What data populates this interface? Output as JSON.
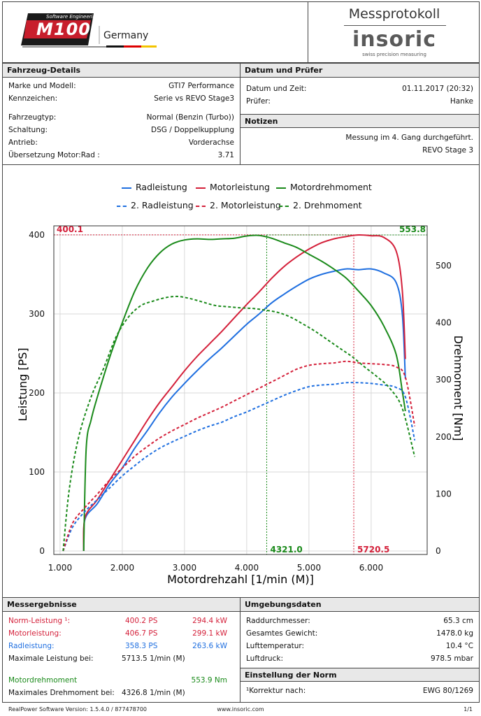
{
  "header": {
    "logo_small": "Software Engineering",
    "logo_main": "M100",
    "logo_country": "Germany",
    "protocol_title": "Messprotokoll",
    "brand": "insoric",
    "brand_sub": "swiss precision measuring"
  },
  "vehicle": {
    "heading": "Fahrzeug-Details",
    "rows": [
      {
        "label": "Marke und Modell:",
        "value": "GTI7 Performance"
      },
      {
        "label": "Kennzeichen:",
        "value": "Serie vs REVO Stage3"
      },
      {
        "label": "Fahrzeugtyp:",
        "value": "Normal (Benzin (Turbo))"
      },
      {
        "label": "Schaltung:",
        "value": "DSG / Doppelkupplung"
      },
      {
        "label": "Antrieb:",
        "value": "Vorderachse"
      },
      {
        "label": "Übersetzung Motor:Rad :",
        "value": "3.71"
      }
    ]
  },
  "date": {
    "heading": "Datum und Prüfer",
    "rows": [
      {
        "label": "Datum und Zeit:",
        "value": "01.11.2017 (20:32)"
      },
      {
        "label": "Prüfer:",
        "value": "Hanke"
      }
    ]
  },
  "notes": {
    "heading": "Notizen",
    "line1": "Messung im 4. Gang durchgeführt.",
    "line2": "REVO Stage 3"
  },
  "colors": {
    "blue": "#1f6fe0",
    "red": "#d4203a",
    "green": "#1a8a1a"
  },
  "chart_data": {
    "type": "line",
    "xlabel": "Motordrehzahl [1/min (M)]",
    "ylabel": "Leistung [PS]",
    "y2label": "Drehmoment [Nm]",
    "xlim": [
      900,
      6900
    ],
    "ylim": [
      0,
      400
    ],
    "y2lim": [
      0,
      553.8
    ],
    "xticks": [
      "1.000",
      "2.000",
      "3.000",
      "4.000",
      "5.000",
      "6.000"
    ],
    "xtick_values": [
      1000,
      2000,
      3000,
      4000,
      5000,
      6000
    ],
    "yticks": [
      "0",
      "100",
      "200",
      "300",
      "400"
    ],
    "ytick_values": [
      0,
      100,
      200,
      300,
      400
    ],
    "y2ticks": [
      "0",
      "100",
      "200",
      "300",
      "400",
      "500"
    ],
    "y2tick_values": [
      0,
      100,
      200,
      300,
      400,
      500
    ],
    "markers": {
      "max_power_value": "400.1",
      "max_power_label_value": 400.1,
      "max_torque_value": "553.8",
      "max_torque_label_value": 553.8,
      "torque_rpm": "4321.0",
      "torque_rpm_value": 4321,
      "power_rpm": "5720.5",
      "power_rpm_value": 5720.5
    },
    "series": [
      {
        "name": "Radleistung",
        "color": "#1f6fe0",
        "dashed": false,
        "axis": "left",
        "x": [
          1380,
          1400,
          1600,
          1800,
          2000,
          2200,
          2400,
          2600,
          2800,
          3000,
          3200,
          3400,
          3600,
          3800,
          4000,
          4200,
          4400,
          4600,
          4800,
          5000,
          5200,
          5400,
          5600,
          5800,
          6000,
          6200,
          6400,
          6500,
          6550
        ],
        "y": [
          0,
          40,
          60,
          85,
          105,
          130,
          152,
          175,
          195,
          212,
          228,
          243,
          257,
          272,
          287,
          300,
          314,
          325,
          335,
          344,
          350,
          354,
          357,
          356,
          357,
          352,
          340,
          300,
          218
        ]
      },
      {
        "name": "Motorleistung",
        "color": "#d4203a",
        "dashed": false,
        "axis": "left",
        "x": [
          1380,
          1400,
          1600,
          1800,
          2000,
          2200,
          2400,
          2600,
          2800,
          3000,
          3200,
          3400,
          3600,
          3800,
          4000,
          4200,
          4400,
          4600,
          4800,
          5000,
          5200,
          5400,
          5600,
          5800,
          6000,
          6200,
          6400,
          6500,
          6550
        ],
        "y": [
          0,
          42,
          65,
          90,
          115,
          140,
          165,
          188,
          208,
          228,
          246,
          262,
          278,
          295,
          312,
          328,
          345,
          360,
          372,
          382,
          390,
          395,
          398,
          400,
          399,
          397,
          380,
          330,
          243
        ]
      },
      {
        "name": "Motordrehmoment",
        "color": "#1a8a1a",
        "dashed": false,
        "axis": "right",
        "x": [
          1380,
          1420,
          1500,
          1600,
          1800,
          2000,
          2200,
          2400,
          2600,
          2800,
          3000,
          3200,
          3400,
          3600,
          3800,
          4000,
          4200,
          4400,
          4600,
          4800,
          5000,
          5200,
          5400,
          5600,
          5800,
          6000,
          6200,
          6400,
          6500,
          6550
        ],
        "y": [
          0,
          180,
          230,
          270,
          340,
          400,
          455,
          495,
          522,
          538,
          545,
          547,
          546,
          547,
          548,
          552,
          553,
          548,
          540,
          532,
          520,
          508,
          494,
          478,
          455,
          430,
          395,
          345,
          280,
          245
        ]
      },
      {
        "name": "2. Radleistung",
        "color": "#1f6fe0",
        "dashed": true,
        "axis": "left",
        "x": [
          1050,
          1200,
          1400,
          1600,
          1800,
          2000,
          2200,
          2400,
          2600,
          2800,
          3000,
          3200,
          3400,
          3600,
          3800,
          4000,
          4200,
          4400,
          4600,
          4800,
          5000,
          5200,
          5400,
          5600,
          5800,
          6000,
          6200,
          6400,
          6550,
          6700
        ],
        "y": [
          0,
          30,
          50,
          65,
          80,
          95,
          108,
          120,
          130,
          138,
          145,
          152,
          158,
          163,
          170,
          176,
          183,
          190,
          197,
          203,
          208,
          210,
          211,
          213,
          213,
          212,
          210,
          207,
          195,
          140
        ]
      },
      {
        "name": "2. Motorleistung",
        "color": "#d4203a",
        "dashed": true,
        "axis": "left",
        "x": [
          1050,
          1200,
          1400,
          1600,
          1800,
          2000,
          2200,
          2400,
          2600,
          2800,
          3000,
          3200,
          3400,
          3600,
          3800,
          4000,
          4200,
          4400,
          4600,
          4800,
          5000,
          5200,
          5400,
          5600,
          5800,
          6000,
          6200,
          6400,
          6550,
          6700
        ],
        "y": [
          0,
          35,
          55,
          72,
          90,
          105,
          120,
          132,
          143,
          152,
          160,
          168,
          175,
          182,
          190,
          198,
          206,
          214,
          222,
          230,
          235,
          237,
          238,
          240,
          238,
          237,
          236,
          233,
          220,
          158
        ]
      },
      {
        "name": "2. Drehmoment",
        "color": "#1a8a1a",
        "dashed": true,
        "axis": "right",
        "x": [
          1050,
          1150,
          1300,
          1500,
          1700,
          1900,
          2100,
          2300,
          2500,
          2700,
          2900,
          3100,
          3300,
          3500,
          3700,
          3900,
          4100,
          4300,
          4500,
          4700,
          4900,
          5100,
          5300,
          5500,
          5700,
          5900,
          6100,
          6300,
          6500,
          6700
        ],
        "y": [
          0,
          110,
          200,
          270,
          320,
          375,
          410,
          430,
          438,
          444,
          446,
          442,
          436,
          430,
          428,
          426,
          425,
          422,
          418,
          410,
          398,
          385,
          370,
          355,
          340,
          322,
          305,
          285,
          250,
          165
        ]
      }
    ]
  },
  "results": {
    "heading": "Messergebnisse",
    "norm": {
      "label": "Norm-Leistung ¹:",
      "ps": "400.2 PS",
      "kw": "294.4 kW"
    },
    "motor": {
      "label": "Motorleistung:",
      "ps": "406.7 PS",
      "kw": "299.1 kW"
    },
    "rad": {
      "label": "Radleistung:",
      "ps": "358.3 PS",
      "kw": "263.6 kW"
    },
    "max_power": {
      "label": "Maximale Leistung bei:",
      "value": "5713.5 1/min (M)"
    },
    "torque": {
      "label": "Motordrehmoment",
      "value": "553.9 Nm"
    },
    "max_torque": {
      "label": "Maximales Drehmoment bei:",
      "value": "4326.8 1/min (M)"
    }
  },
  "environment": {
    "heading": "Umgebungsdaten",
    "rows": [
      {
        "label": "Raddurchmesser:",
        "value": "65.3 cm"
      },
      {
        "label": "Gesamtes Gewicht:",
        "value": "1478.0 kg"
      },
      {
        "label": "Lufttemperatur:",
        "value": "10.4 °C"
      },
      {
        "label": "Luftdruck:",
        "value": "978.5 mbar"
      }
    ]
  },
  "norm_settings": {
    "heading": "Einstellung der Norm",
    "label": "¹Korrektur nach:",
    "value": "EWG 80/1269"
  },
  "footer": {
    "left": "RealPower Software Version: 1.5.4.0 / 877478700",
    "center": "www.insoric.com",
    "right": "1/1"
  }
}
